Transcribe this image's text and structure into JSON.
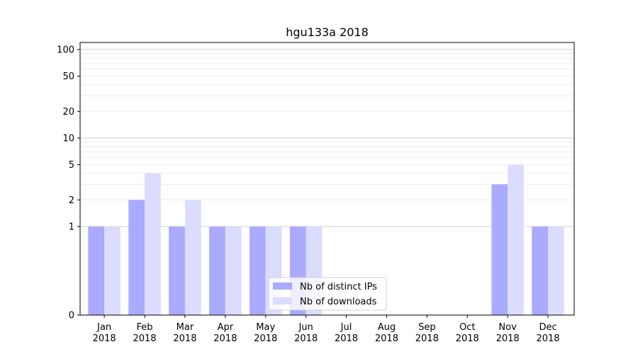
{
  "chart_data": {
    "type": "bar",
    "title": "hgu133a 2018",
    "xlabel": "",
    "ylabel": "",
    "y_scale": "symlog",
    "ylim": [
      0,
      120
    ],
    "grid": "horizontal major and minor lines",
    "legend_position": "lower-center",
    "categories": [
      {
        "month": "Jan",
        "year": "2018"
      },
      {
        "month": "Feb",
        "year": "2018"
      },
      {
        "month": "Mar",
        "year": "2018"
      },
      {
        "month": "Apr",
        "year": "2018"
      },
      {
        "month": "May",
        "year": "2018"
      },
      {
        "month": "Jun",
        "year": "2018"
      },
      {
        "month": "Jul",
        "year": "2018"
      },
      {
        "month": "Aug",
        "year": "2018"
      },
      {
        "month": "Sep",
        "year": "2018"
      },
      {
        "month": "Oct",
        "year": "2018"
      },
      {
        "month": "Nov",
        "year": "2018"
      },
      {
        "month": "Dec",
        "year": "2018"
      }
    ],
    "y_ticks": [
      {
        "value": 0,
        "label": "0"
      },
      {
        "value": 1,
        "label": "1"
      },
      {
        "value": 2,
        "label": "2"
      },
      {
        "value": 5,
        "label": "5"
      },
      {
        "value": 10,
        "label": "10"
      },
      {
        "value": 20,
        "label": "20"
      },
      {
        "value": 50,
        "label": "50"
      },
      {
        "value": 100,
        "label": "100"
      }
    ],
    "series": [
      {
        "name": "Nb of distinct IPs",
        "color": "#aaaaff",
        "values": [
          1,
          2,
          1,
          1,
          1,
          1,
          0,
          0,
          0,
          0,
          3,
          1
        ]
      },
      {
        "name": "Nb of downloads",
        "color": "#dcdcff",
        "values": [
          1,
          4,
          2,
          1,
          1,
          1,
          0,
          0,
          0,
          0,
          5,
          1
        ]
      }
    ]
  }
}
